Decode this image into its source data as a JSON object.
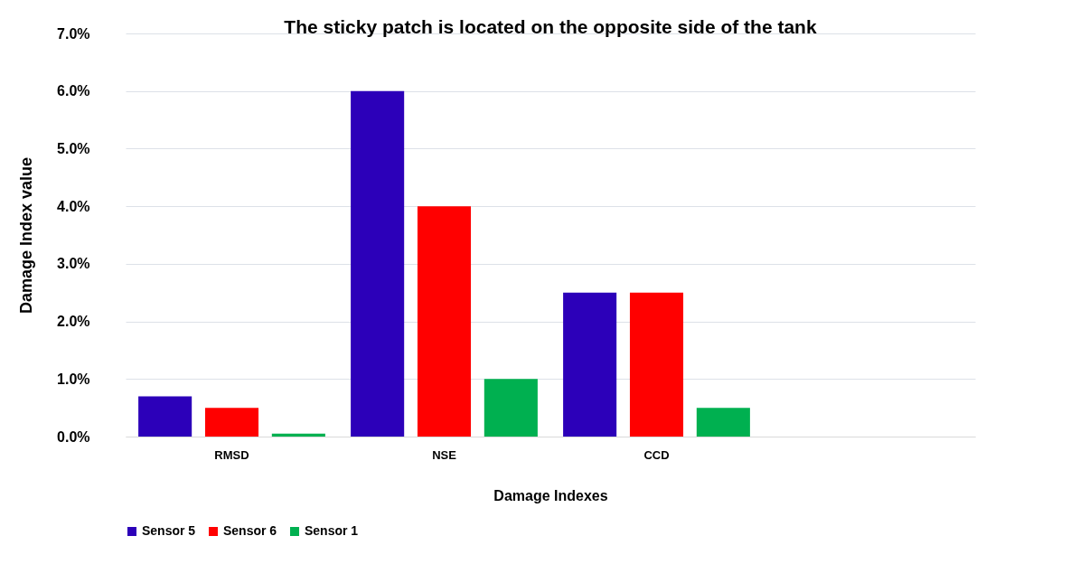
{
  "chart_data": {
    "type": "bar",
    "title": "The sticky patch is located on the opposite side of the tank",
    "xlabel": "Damage Indexes",
    "ylabel": "Damage Index value",
    "categories": [
      "RMSD",
      "NSE",
      "CCD",
      null
    ],
    "series": [
      {
        "name": "Sensor 5",
        "color": "#2c00b9",
        "values": [
          0.7,
          6,
          2.5,
          null
        ]
      },
      {
        "name": "Sensor 6",
        "color": "#ff0000",
        "values": [
          0.5,
          4,
          2.5,
          null
        ]
      },
      {
        "name": "Sensor 1",
        "color": "#00b050",
        "values": [
          0.05,
          1,
          0.5,
          null
        ]
      }
    ],
    "ylim": [
      0,
      7
    ],
    "yticks": [
      {
        "value": 0,
        "label": "0.0%"
      },
      {
        "value": 1,
        "label": "1.0%"
      },
      {
        "value": 2,
        "label": "2.0%"
      },
      {
        "value": 3,
        "label": "3.0%"
      },
      {
        "value": 4,
        "label": "4.0%"
      },
      {
        "value": 5,
        "label": "5.0%"
      },
      {
        "value": 6,
        "label": "6.0%"
      },
      {
        "value": 7,
        "label": "7.0%"
      }
    ],
    "grid": "y",
    "legend": "bottom"
  }
}
